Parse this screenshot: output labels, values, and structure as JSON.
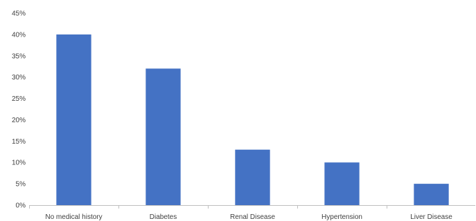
{
  "chart_data": {
    "type": "bar",
    "title": "",
    "xlabel": "",
    "ylabel": "",
    "categories": [
      "No  medical history",
      "Diabetes",
      "Renal Disease",
      "Hypertension",
      "Liver Disease"
    ],
    "values": [
      40,
      32,
      13,
      10,
      5
    ],
    "y_ticks": [
      "0%",
      "5%",
      "10%",
      "15%",
      "20%",
      "25%",
      "30%",
      "35%",
      "40%",
      "45%"
    ],
    "ylim": [
      0,
      45
    ],
    "tick_step": 5,
    "grid": false,
    "legend": "none",
    "colors": {
      "bar": "#4472C4",
      "axis": "#bfbfbf",
      "text": "#404040"
    }
  }
}
